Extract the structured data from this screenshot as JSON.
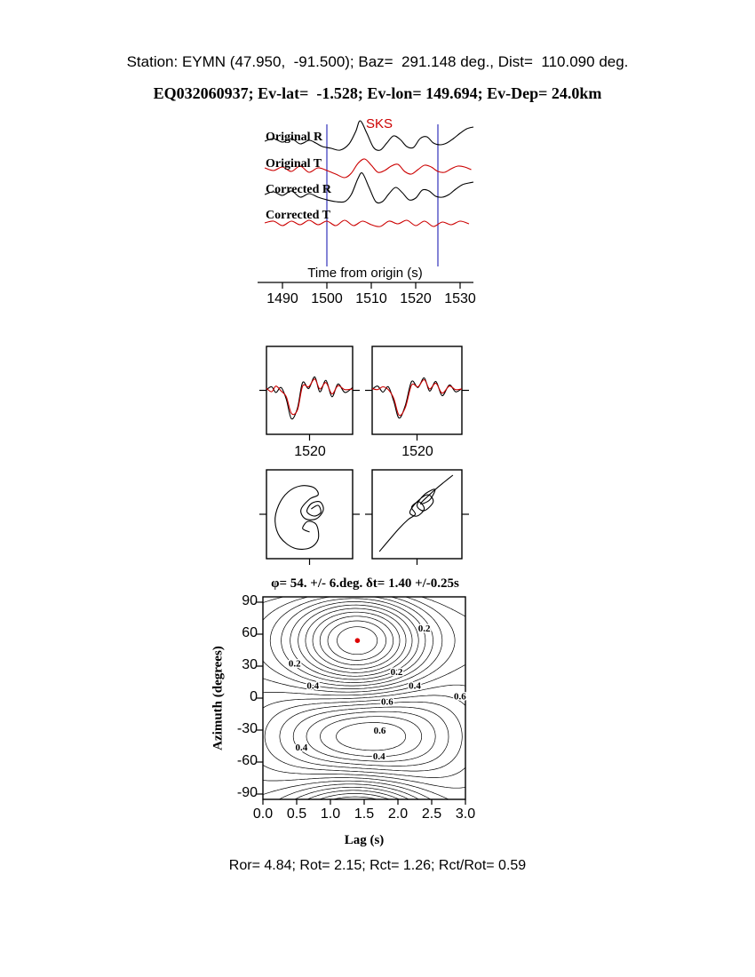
{
  "header": {
    "line1": "Station: EYMN (47.950,  -91.500); Baz=  291.148 deg., Dist=  110.090 deg.",
    "line2": "EQ032060937; Ev-lat=  -1.528; Ev-lon= 149.694; Ev-Dep= 24.0km"
  },
  "footer": {
    "stats": "Ror= 4.84; Rot= 2.15; Rct= 1.26; Rct/Rot= 0.59"
  },
  "colors": {
    "trace_black": "#000000",
    "trace_red": "#cc0000",
    "window_blue": "#3333bb",
    "marker_red": "#dd0000",
    "contour_black": "#000000"
  },
  "chart_data": [
    {
      "id": "waveforms",
      "type": "line",
      "xlabel": "Time from origin (s)",
      "phase_label": "SKS",
      "x_range": [
        1486,
        1533
      ],
      "xticks": [
        1490,
        1500,
        1510,
        1520,
        1530
      ],
      "window_lines": [
        1500,
        1525
      ],
      "series": [
        {
          "name": "Original R",
          "color": "#000000",
          "points": [
            [
              1486,
              1
            ],
            [
              1488,
              4
            ],
            [
              1490,
              0
            ],
            [
              1492,
              4
            ],
            [
              1494,
              -2
            ],
            [
              1496,
              2
            ],
            [
              1497.5,
              -1
            ],
            [
              1499,
              -5
            ],
            [
              1501,
              -7
            ],
            [
              1503,
              -9
            ],
            [
              1505,
              -2
            ],
            [
              1506.5,
              12
            ],
            [
              1507.5,
              24
            ],
            [
              1509,
              10
            ],
            [
              1510.5,
              -6
            ],
            [
              1512,
              -9
            ],
            [
              1513.5,
              -1
            ],
            [
              1515,
              7
            ],
            [
              1516.5,
              3
            ],
            [
              1518,
              -5
            ],
            [
              1519.5,
              -6
            ],
            [
              1521,
              4
            ],
            [
              1522.5,
              6
            ],
            [
              1524,
              -1
            ],
            [
              1525.5,
              -3
            ],
            [
              1527,
              -1
            ],
            [
              1528.5,
              4
            ],
            [
              1530,
              10
            ],
            [
              1531.5,
              15
            ],
            [
              1533,
              17
            ]
          ]
        },
        {
          "name": "Original T",
          "color": "#cc0000",
          "points": [
            [
              1486,
              1
            ],
            [
              1488,
              -2
            ],
            [
              1490,
              2
            ],
            [
              1492,
              -3
            ],
            [
              1494,
              3
            ],
            [
              1496,
              -4
            ],
            [
              1498,
              1
            ],
            [
              1500,
              -2
            ],
            [
              1502,
              -6
            ],
            [
              1504,
              -10
            ],
            [
              1505.5,
              -5
            ],
            [
              1507,
              6
            ],
            [
              1508.5,
              11
            ],
            [
              1510,
              4
            ],
            [
              1511.5,
              -4
            ],
            [
              1513,
              -2
            ],
            [
              1514.5,
              3
            ],
            [
              1516,
              5
            ],
            [
              1517.5,
              -3
            ],
            [
              1519,
              -6
            ],
            [
              1520.5,
              -1
            ],
            [
              1522,
              4
            ],
            [
              1523.5,
              2
            ],
            [
              1525,
              -3
            ],
            [
              1526.5,
              -4
            ],
            [
              1528,
              0
            ],
            [
              1529.5,
              3
            ],
            [
              1531,
              2
            ],
            [
              1532.5,
              -1
            ]
          ]
        },
        {
          "name": "Corrected R",
          "color": "#000000",
          "points": [
            [
              1486,
              0
            ],
            [
              1488,
              3
            ],
            [
              1490,
              -1
            ],
            [
              1492,
              4
            ],
            [
              1494,
              -3
            ],
            [
              1496,
              1
            ],
            [
              1498,
              -3
            ],
            [
              1500,
              -6
            ],
            [
              1502,
              -8
            ],
            [
              1504,
              -8
            ],
            [
              1505.5,
              0
            ],
            [
              1507,
              18
            ],
            [
              1508,
              24
            ],
            [
              1509.5,
              8
            ],
            [
              1511,
              -8
            ],
            [
              1512.5,
              -8
            ],
            [
              1514,
              1
            ],
            [
              1515.5,
              8
            ],
            [
              1517,
              2
            ],
            [
              1518.5,
              -6
            ],
            [
              1520,
              -4
            ],
            [
              1521.5,
              5
            ],
            [
              1523,
              4
            ],
            [
              1524.5,
              -2
            ],
            [
              1526,
              -3
            ],
            [
              1527.5,
              0
            ],
            [
              1529,
              6
            ],
            [
              1530.5,
              11
            ],
            [
              1532,
              13
            ],
            [
              1533,
              14
            ]
          ]
        },
        {
          "name": "Corrected T",
          "color": "#cc0000",
          "points": [
            [
              1486,
              0
            ],
            [
              1488,
              2
            ],
            [
              1490,
              -3
            ],
            [
              1492,
              2
            ],
            [
              1494,
              -2
            ],
            [
              1496,
              3
            ],
            [
              1498,
              -2
            ],
            [
              1500,
              2
            ],
            [
              1502,
              -3
            ],
            [
              1504,
              3
            ],
            [
              1506,
              -3
            ],
            [
              1508,
              2
            ],
            [
              1510,
              -2
            ],
            [
              1512,
              -4
            ],
            [
              1514,
              2
            ],
            [
              1516,
              -1
            ],
            [
              1518,
              3
            ],
            [
              1520,
              -3
            ],
            [
              1522,
              2
            ],
            [
              1524,
              -4
            ],
            [
              1526,
              1
            ],
            [
              1528,
              -2
            ],
            [
              1530,
              2
            ],
            [
              1532,
              -1
            ]
          ]
        }
      ]
    },
    {
      "id": "fit_left",
      "type": "line",
      "xtick_label": "1520",
      "series": [
        {
          "name": "data",
          "color": "#000000",
          "points": [
            [
              0,
              0.02
            ],
            [
              0.06,
              0.1
            ],
            [
              0.11,
              -0.06
            ],
            [
              0.17,
              0.08
            ],
            [
              0.23,
              -0.25
            ],
            [
              0.29,
              -0.8
            ],
            [
              0.36,
              -0.5
            ],
            [
              0.42,
              0.22
            ],
            [
              0.49,
              0.05
            ],
            [
              0.56,
              0.38
            ],
            [
              0.62,
              -0.04
            ],
            [
              0.69,
              0.28
            ],
            [
              0.76,
              -0.18
            ],
            [
              0.83,
              0.18
            ],
            [
              0.91,
              -0.06
            ],
            [
              1,
              0.08
            ]
          ]
        },
        {
          "name": "fit",
          "color": "#cc0000",
          "points": [
            [
              0,
              0.06
            ],
            [
              0.06,
              -0.04
            ],
            [
              0.11,
              0.12
            ],
            [
              0.17,
              -0.02
            ],
            [
              0.23,
              -0.18
            ],
            [
              0.29,
              -0.65
            ],
            [
              0.36,
              -0.55
            ],
            [
              0.42,
              0.12
            ],
            [
              0.49,
              0.1
            ],
            [
              0.56,
              0.32
            ],
            [
              0.62,
              0.04
            ],
            [
              0.69,
              0.22
            ],
            [
              0.76,
              -0.1
            ],
            [
              0.83,
              0.13
            ],
            [
              0.91,
              0.02
            ],
            [
              1,
              0.04
            ]
          ]
        }
      ]
    },
    {
      "id": "fit_right",
      "type": "line",
      "xtick_label": "1520",
      "series": [
        {
          "name": "data",
          "color": "#000000",
          "points": [
            [
              0,
              0.03
            ],
            [
              0.06,
              0.12
            ],
            [
              0.12,
              -0.05
            ],
            [
              0.18,
              0.1
            ],
            [
              0.24,
              -0.3
            ],
            [
              0.3,
              -0.78
            ],
            [
              0.37,
              -0.42
            ],
            [
              0.44,
              0.25
            ],
            [
              0.51,
              0.08
            ],
            [
              0.58,
              0.35
            ],
            [
              0.64,
              -0.02
            ],
            [
              0.71,
              0.25
            ],
            [
              0.78,
              -0.15
            ],
            [
              0.86,
              0.15
            ],
            [
              0.93,
              -0.04
            ],
            [
              1,
              0.05
            ]
          ]
        },
        {
          "name": "fit",
          "color": "#cc0000",
          "points": [
            [
              0,
              0.05
            ],
            [
              0.06,
              0.02
            ],
            [
              0.12,
              0.1
            ],
            [
              0.18,
              0.02
            ],
            [
              0.24,
              -0.22
            ],
            [
              0.3,
              -0.7
            ],
            [
              0.37,
              -0.48
            ],
            [
              0.44,
              0.15
            ],
            [
              0.51,
              0.1
            ],
            [
              0.58,
              0.3
            ],
            [
              0.64,
              0.04
            ],
            [
              0.71,
              0.2
            ],
            [
              0.78,
              -0.08
            ],
            [
              0.86,
              0.12
            ],
            [
              0.93,
              0.02
            ],
            [
              1,
              0.04
            ]
          ]
        }
      ]
    },
    {
      "id": "particle_motion_left",
      "type": "path",
      "color": "#000000",
      "points": [
        [
          0.52,
          0.44
        ],
        [
          0.6,
          0.4
        ],
        [
          0.63,
          0.48
        ],
        [
          0.55,
          0.52
        ],
        [
          0.47,
          0.47
        ],
        [
          0.52,
          0.38
        ],
        [
          0.62,
          0.36
        ],
        [
          0.66,
          0.45
        ],
        [
          0.58,
          0.55
        ],
        [
          0.45,
          0.55
        ],
        [
          0.4,
          0.45
        ],
        [
          0.5,
          0.33
        ],
        [
          0.6,
          0.28
        ],
        [
          0.55,
          0.2
        ],
        [
          0.4,
          0.18
        ],
        [
          0.25,
          0.25
        ],
        [
          0.14,
          0.4
        ],
        [
          0.1,
          0.58
        ],
        [
          0.16,
          0.76
        ],
        [
          0.32,
          0.88
        ],
        [
          0.5,
          0.88
        ],
        [
          0.6,
          0.78
        ],
        [
          0.58,
          0.62
        ],
        [
          0.48,
          0.58
        ],
        [
          0.42,
          0.66
        ],
        [
          0.5,
          0.7
        ]
      ]
    },
    {
      "id": "particle_motion_right",
      "type": "path",
      "color": "#000000",
      "points": [
        [
          0.08,
          0.92
        ],
        [
          0.18,
          0.8
        ],
        [
          0.3,
          0.66
        ],
        [
          0.4,
          0.56
        ],
        [
          0.48,
          0.5
        ],
        [
          0.44,
          0.42
        ],
        [
          0.52,
          0.36
        ],
        [
          0.58,
          0.44
        ],
        [
          0.5,
          0.52
        ],
        [
          0.42,
          0.48
        ],
        [
          0.5,
          0.36
        ],
        [
          0.62,
          0.28
        ],
        [
          0.68,
          0.36
        ],
        [
          0.58,
          0.46
        ],
        [
          0.5,
          0.4
        ],
        [
          0.58,
          0.28
        ],
        [
          0.7,
          0.22
        ],
        [
          0.64,
          0.34
        ],
        [
          0.54,
          0.38
        ],
        [
          0.66,
          0.26
        ],
        [
          0.8,
          0.14
        ],
        [
          0.9,
          0.06
        ]
      ]
    },
    {
      "id": "error_surface",
      "type": "contour",
      "title": "φ= 54. +/- 6.deg. δt= 1.40 +/-0.25s",
      "xlabel": "Lag (s)",
      "ylabel": "Azimuth (degrees)",
      "x_range": [
        0,
        3
      ],
      "y_range": [
        -95,
        95
      ],
      "xticks": [
        "0.0",
        "0.5",
        "1.0",
        "1.5",
        "2.0",
        "2.5",
        "3.0"
      ],
      "yticks": [
        90,
        60,
        30,
        0,
        -30,
        -60,
        -90
      ],
      "best_fit": {
        "phi_deg": 54,
        "phi_err_deg": 6,
        "dt_s": 1.4,
        "dt_err_s": 0.25
      },
      "levels": {
        "start": 0.05,
        "step": 0.05,
        "count": 19
      },
      "model": {
        "sigma_t": 1.3,
        "bulge_center": 1.6,
        "bulge_sigma": 1.5,
        "bulge_base": 0.55,
        "bulge_amp": 0.45
      },
      "contour_labels": [
        {
          "text": "0.2",
          "lag": 2.39,
          "az": 66
        },
        {
          "text": "0.2",
          "lag": 0.47,
          "az": 33
        },
        {
          "text": "0.2",
          "lag": 1.98,
          "az": 25
        },
        {
          "text": "0.4",
          "lag": 0.74,
          "az": 12
        },
        {
          "text": "0.4",
          "lag": 2.25,
          "az": 12
        },
        {
          "text": "0.6",
          "lag": 2.92,
          "az": 2
        },
        {
          "text": "0.6",
          "lag": 1.84,
          "az": -3
        },
        {
          "text": "0.6",
          "lag": 1.73,
          "az": -30
        },
        {
          "text": "0.4",
          "lag": 0.57,
          "az": -46
        },
        {
          "text": "0.4",
          "lag": 1.72,
          "az": -54
        }
      ]
    }
  ]
}
